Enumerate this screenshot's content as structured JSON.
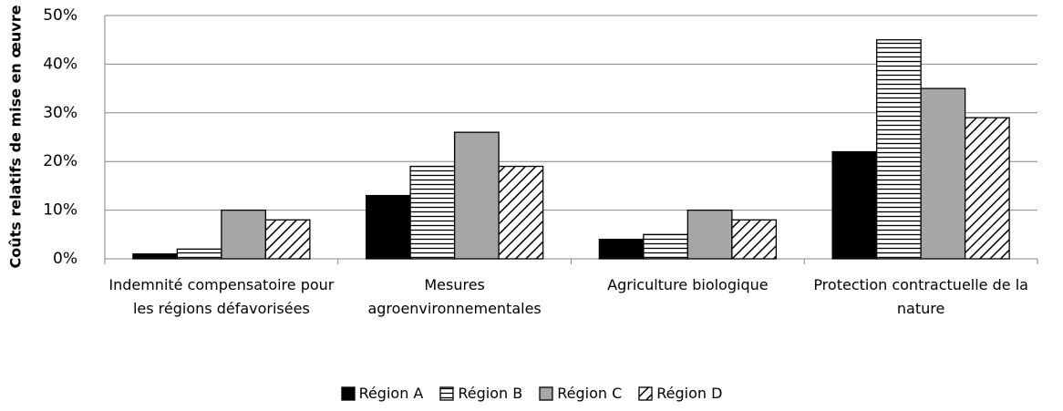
{
  "chart_data": {
    "type": "bar",
    "y_label": "Coûts relatifs de mise en œuvre",
    "categories": [
      "Indemnité compensatoire pour les régions défavorisées",
      "Mesures agroenvironnementales",
      "Agriculture biologique",
      "Protection contractuelle de la nature"
    ],
    "series": [
      {
        "name": "Région A",
        "color": "#000000",
        "pattern": "solid",
        "values": [
          1,
          13,
          4,
          22
        ]
      },
      {
        "name": "Région B",
        "color": "#000000",
        "pattern": "horizontal",
        "values": [
          2,
          19,
          5,
          45
        ]
      },
      {
        "name": "Région C",
        "color": "#a6a6a6",
        "pattern": "solid",
        "values": [
          10,
          26,
          10,
          35
        ]
      },
      {
        "name": "Région D",
        "color": "#000000",
        "pattern": "diagonal",
        "values": [
          8,
          19,
          8,
          29
        ]
      }
    ],
    "ylim": [
      0,
      50
    ],
    "yticks": [
      {
        "value": 0,
        "label": "0%"
      },
      {
        "value": 10,
        "label": "10%"
      },
      {
        "value": 20,
        "label": "20%"
      },
      {
        "value": 30,
        "label": "30%"
      },
      {
        "value": 40,
        "label": "40%"
      },
      {
        "value": 50,
        "label": "50%"
      }
    ],
    "grid": true,
    "legend": "bottom"
  }
}
